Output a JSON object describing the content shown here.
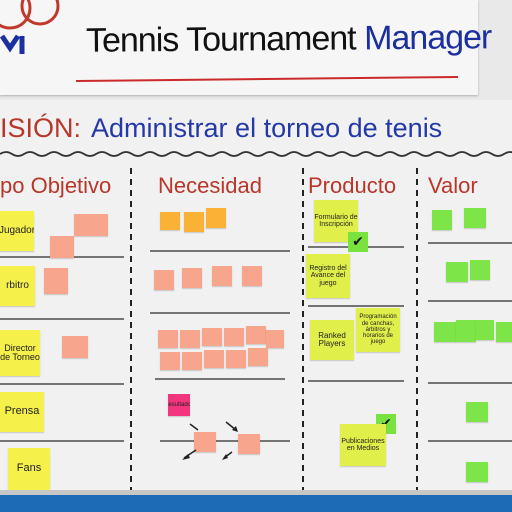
{
  "header": {
    "title_part1": "Tennis Tournament ",
    "title_part2": "Manager"
  },
  "vision": {
    "label": "ISIÓN:",
    "text": "Administrar el torneo de tenis"
  },
  "columns": {
    "objetivo": "po Objetivo",
    "necesidad": "Necesidad",
    "producto": "Producto",
    "valor": "Valor"
  },
  "objetivo_notes": [
    "Jugador",
    "rbitro",
    "Director de Torneo",
    "Prensa",
    "Fans"
  ],
  "producto_notes": [
    "Formulario de Inscripción",
    "Registro del Avance del juego",
    "Ranked Players",
    "Programación de canchas, árbitros y horarios de juego",
    "Publicaciones en Medios"
  ],
  "necesidad_notes_magenta": [
    "Resultados"
  ],
  "colors": {
    "title_accent": "#1b2f9e",
    "heading_red": "#b8362a",
    "note_yellow": "#f6f04b",
    "note_pink": "#f8a58e",
    "note_orange": "#fbb135",
    "note_green": "#7ee548",
    "note_magenta": "#f2357d"
  },
  "icons": [
    "check-icon",
    "arrow-icon",
    "logo-icon"
  ]
}
